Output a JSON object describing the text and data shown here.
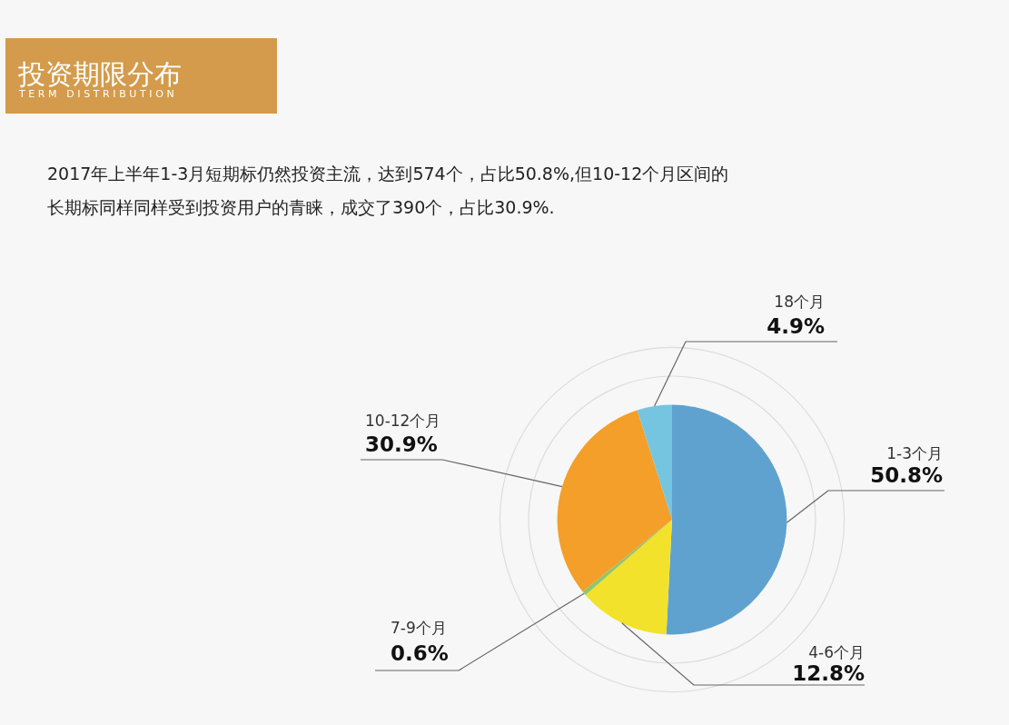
{
  "chart_data": {
    "type": "pie",
    "title": "投资期限分布",
    "subtitle": "TERM DISTRIBUTION",
    "annotations": [
      "2017年上半年1-3月短期标仍然投资主流，达到574个，占比50.8%,但10-12个月区间的",
      "长期标同样同样受到投资用户的青睐，成交了390个，占比30.9%."
    ],
    "categories": [
      "1-3个月",
      "4-6个月",
      "7-9个月",
      "10-12个月",
      "18个月"
    ],
    "values": [
      50.8,
      12.8,
      0.6,
      30.9,
      4.9
    ],
    "colors": [
      "#5fa2cf",
      "#f2e22c",
      "#8ec66d",
      "#f39f2a",
      "#75c5e0"
    ],
    "value_labels": [
      "50.8%",
      "12.8%",
      "0.6%",
      "30.9%",
      "4.9%"
    ]
  }
}
